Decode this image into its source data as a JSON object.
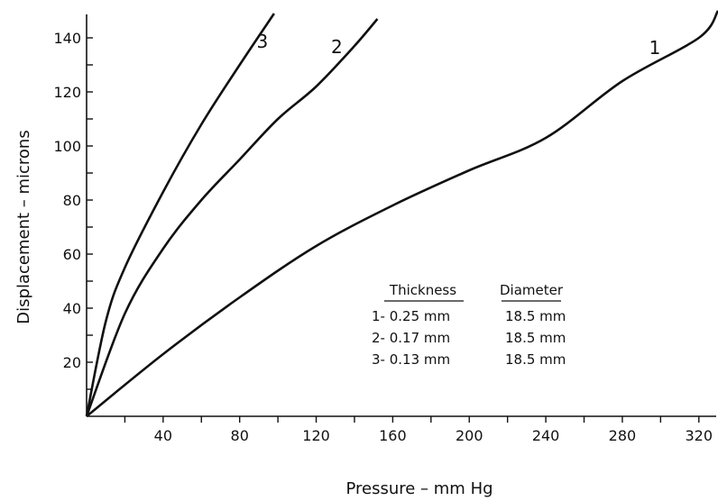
{
  "chart_data": {
    "type": "line",
    "xlabel": "Pressure – mm Hg",
    "ylabel": "Displacement – microns",
    "xlim": [
      0,
      330
    ],
    "ylim": [
      0,
      150
    ],
    "x_ticks": [
      40,
      80,
      120,
      160,
      200,
      240,
      280,
      320
    ],
    "y_ticks": [
      20,
      40,
      60,
      80,
      100,
      120,
      140
    ],
    "grid": false,
    "series": [
      {
        "name": "1",
        "x": [
          0,
          40,
          80,
          120,
          160,
          200,
          240,
          280,
          320,
          330
        ],
        "y": [
          0,
          23,
          44,
          63,
          78,
          91,
          103,
          124,
          140,
          150
        ]
      },
      {
        "name": "2",
        "x": [
          0,
          20,
          40,
          60,
          80,
          100,
          120,
          140,
          152
        ],
        "y": [
          0,
          38,
          62,
          80,
          95,
          110,
          122,
          137,
          147
        ]
      },
      {
        "name": "3",
        "x": [
          0,
          10,
          20,
          40,
          60,
          80,
          98
        ],
        "y": [
          0,
          35,
          55,
          83,
          108,
          130,
          149
        ]
      }
    ],
    "legend": {
      "position": "center-right",
      "headers": [
        "Thickness",
        "Diameter"
      ],
      "rows": [
        {
          "thickness": "1- 0.25 mm",
          "diameter": "18.5 mm"
        },
        {
          "thickness": "2- 0.17 mm",
          "diameter": "18.5 mm"
        },
        {
          "thickness": "3- 0.13 mm",
          "diameter": "18.5 mm"
        }
      ]
    }
  }
}
